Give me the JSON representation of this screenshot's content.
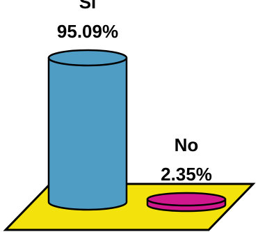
{
  "colors": {
    "floor": "#f4e20d",
    "bar_si": "#4f9dc5",
    "bar_no": "#d0178e",
    "outline": "#000000"
  },
  "chart_data": {
    "type": "bar",
    "style": "3d-cylinder",
    "title": "",
    "xlabel": "",
    "ylabel": "",
    "ylim": [
      0,
      100
    ],
    "grid": false,
    "legend": "none",
    "categories": [
      "Si",
      "No"
    ],
    "values": [
      95.09,
      2.35
    ],
    "value_labels": [
      "95.09%",
      "2.35%"
    ]
  }
}
